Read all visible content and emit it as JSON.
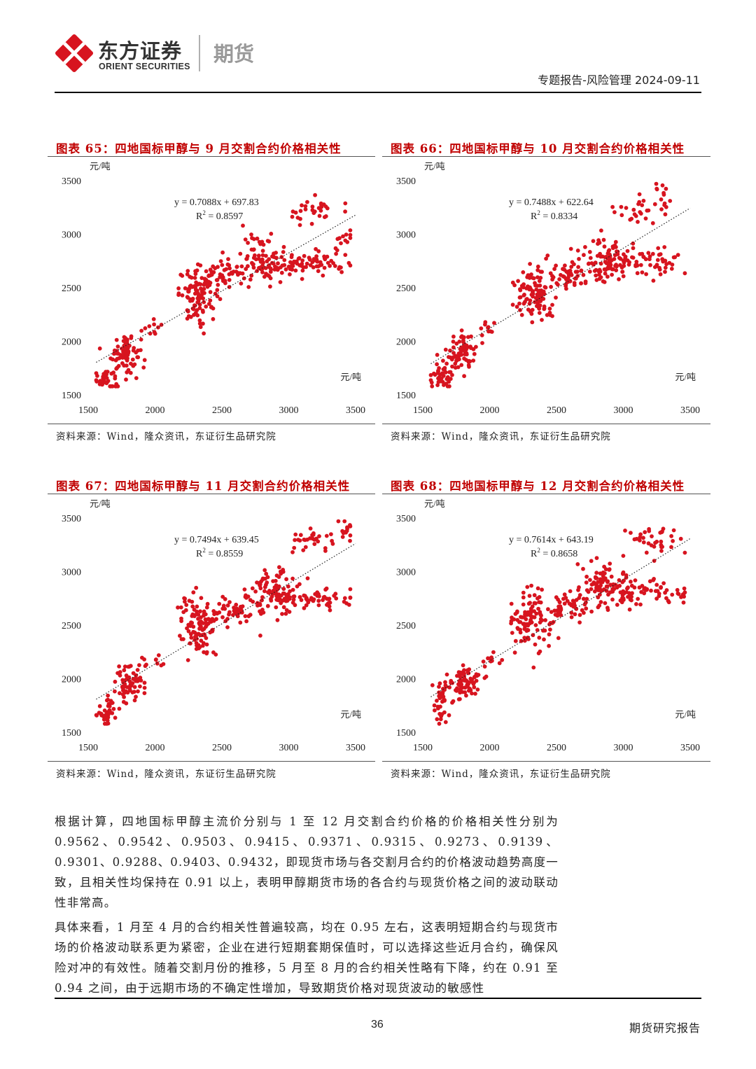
{
  "header": {
    "logo_cn": "东方证券",
    "logo_en": "ORIENT SECURITIES",
    "logo_suffix": "期货",
    "report_meta": "专题报告-风险管理 2024-09-11",
    "colors": {
      "logo_red": "#d7141f",
      "title_red": "#c00000"
    }
  },
  "charts": [
    {
      "title": "图表 65：四地国标甲醇与 9 月交割合约价格相关性",
      "source": "资料来源：Wind，隆众资讯，东证衍生品研究院",
      "y_unit": "元/吨",
      "x_unit": "元/吨",
      "equation": "y = 0.7088x + 697.83",
      "r2_label": "R",
      "r2_sup": "2",
      "r2_value": " = 0.8597"
    },
    {
      "title": "图表 66：四地国标甲醇与 10 月交割合约价格相关性",
      "source": "资料来源：Wind，隆众资讯，东证衍生品研究院",
      "y_unit": "元/吨",
      "x_unit": "元/吨",
      "equation": "y = 0.7488x + 622.64",
      "r2_label": "R",
      "r2_sup": "2",
      "r2_value": " = 0.8334"
    },
    {
      "title": "图表 67：四地国标甲醇与 11 月交割合约价格相关性",
      "source": "资料来源：Wind，隆众资讯，东证衍生品研究院",
      "y_unit": "元/吨",
      "x_unit": "元/吨",
      "equation": "y = 0.7494x + 639.45",
      "r2_label": "R",
      "r2_sup": "2",
      "r2_value": " = 0.8559"
    },
    {
      "title": "图表 68：四地国标甲醇与 12 月交割合约价格相关性",
      "source": "资料来源：Wind，隆众资讯，东证衍生品研究院",
      "y_unit": "元/吨",
      "x_unit": "元/吨",
      "equation": "y = 0.7614x + 643.19",
      "r2_label": "R",
      "r2_sup": "2",
      "r2_value": " = 0.8658"
    }
  ],
  "chart_data": [
    {
      "type": "scatter",
      "xlim": [
        1500,
        3500
      ],
      "ylim": [
        1500,
        3500
      ],
      "x_ticks": [
        "1500",
        "2000",
        "2500",
        "3000",
        "3500"
      ],
      "y_ticks": [
        "1500",
        "2000",
        "2500",
        "3000",
        "3500"
      ],
      "trendline": {
        "slope": 0.7088,
        "intercept": 697.83,
        "x_range": [
          1560,
          3500
        ]
      },
      "series_color": "#d7141f",
      "grid": false,
      "clusters": [
        {
          "cx": 1640,
          "cy": 1660,
          "sx": 45,
          "sy": 70,
          "n": 40
        },
        {
          "cx": 1780,
          "cy": 1900,
          "sx": 55,
          "sy": 90,
          "n": 70
        },
        {
          "cx": 1970,
          "cy": 2120,
          "sx": 45,
          "sy": 40,
          "n": 10
        },
        {
          "cx": 2330,
          "cy": 2440,
          "sx": 75,
          "sy": 120,
          "n": 110
        },
        {
          "cx": 2550,
          "cy": 2620,
          "sx": 80,
          "sy": 70,
          "n": 45
        },
        {
          "cx": 2830,
          "cy": 2780,
          "sx": 90,
          "sy": 110,
          "n": 80
        },
        {
          "cx": 3150,
          "cy": 2720,
          "sx": 160,
          "sy": 55,
          "n": 70
        },
        {
          "cx": 3180,
          "cy": 3220,
          "sx": 90,
          "sy": 60,
          "n": 30
        },
        {
          "cx": 3400,
          "cy": 2950,
          "sx": 50,
          "sy": 90,
          "n": 12
        }
      ]
    },
    {
      "type": "scatter",
      "xlim": [
        1500,
        3500
      ],
      "ylim": [
        1500,
        3500
      ],
      "x_ticks": [
        "1500",
        "2000",
        "2500",
        "3000",
        "3500"
      ],
      "y_ticks": [
        "1500",
        "2000",
        "2500",
        "3000",
        "3500"
      ],
      "trendline": {
        "slope": 0.7488,
        "intercept": 622.64,
        "x_range": [
          1560,
          3500
        ]
      },
      "series_color": "#d7141f",
      "grid": false,
      "clusters": [
        {
          "cx": 1650,
          "cy": 1680,
          "sx": 45,
          "sy": 70,
          "n": 40
        },
        {
          "cx": 1790,
          "cy": 1910,
          "sx": 55,
          "sy": 90,
          "n": 70
        },
        {
          "cx": 1980,
          "cy": 2120,
          "sx": 45,
          "sy": 40,
          "n": 10
        },
        {
          "cx": 2340,
          "cy": 2450,
          "sx": 75,
          "sy": 130,
          "n": 110
        },
        {
          "cx": 2580,
          "cy": 2600,
          "sx": 90,
          "sy": 70,
          "n": 45
        },
        {
          "cx": 2850,
          "cy": 2760,
          "sx": 90,
          "sy": 110,
          "n": 80
        },
        {
          "cx": 3150,
          "cy": 2740,
          "sx": 170,
          "sy": 55,
          "n": 70
        },
        {
          "cx": 3100,
          "cy": 3250,
          "sx": 90,
          "sy": 70,
          "n": 25
        },
        {
          "cx": 3290,
          "cy": 3350,
          "sx": 30,
          "sy": 90,
          "n": 12
        }
      ]
    },
    {
      "type": "scatter",
      "xlim": [
        1500,
        3500
      ],
      "ylim": [
        1500,
        3500
      ],
      "x_ticks": [
        "1500",
        "2000",
        "2500",
        "3000",
        "3500"
      ],
      "y_ticks": [
        "1500",
        "2000",
        "2500",
        "3000",
        "3500"
      ],
      "trendline": {
        "slope": 0.7494,
        "intercept": 639.45,
        "x_range": [
          1560,
          3500
        ]
      },
      "series_color": "#d7141f",
      "grid": false,
      "clusters": [
        {
          "cx": 1650,
          "cy": 1700,
          "sx": 45,
          "sy": 70,
          "n": 40
        },
        {
          "cx": 1800,
          "cy": 1940,
          "sx": 55,
          "sy": 100,
          "n": 70
        },
        {
          "cx": 2000,
          "cy": 2150,
          "sx": 50,
          "sy": 40,
          "n": 10
        },
        {
          "cx": 2320,
          "cy": 2480,
          "sx": 70,
          "sy": 140,
          "n": 110
        },
        {
          "cx": 2600,
          "cy": 2640,
          "sx": 90,
          "sy": 70,
          "n": 45
        },
        {
          "cx": 2880,
          "cy": 2800,
          "sx": 90,
          "sy": 120,
          "n": 80
        },
        {
          "cx": 3150,
          "cy": 2760,
          "sx": 170,
          "sy": 55,
          "n": 70
        },
        {
          "cx": 3150,
          "cy": 3280,
          "sx": 110,
          "sy": 60,
          "n": 30
        },
        {
          "cx": 3420,
          "cy": 3400,
          "sx": 40,
          "sy": 60,
          "n": 15
        }
      ]
    },
    {
      "type": "scatter",
      "xlim": [
        1500,
        3500
      ],
      "ylim": [
        1500,
        3500
      ],
      "x_ticks": [
        "1500",
        "2000",
        "2500",
        "3000",
        "3500"
      ],
      "y_ticks": [
        "1500",
        "2000",
        "2500",
        "3000",
        "3500"
      ],
      "trendline": {
        "slope": 0.7614,
        "intercept": 643.19,
        "x_range": [
          1560,
          3500
        ]
      },
      "series_color": "#d7141f",
      "grid": false,
      "clusters": [
        {
          "cx": 1630,
          "cy": 1780,
          "sx": 35,
          "sy": 110,
          "n": 40
        },
        {
          "cx": 1820,
          "cy": 1960,
          "sx": 60,
          "sy": 80,
          "n": 70
        },
        {
          "cx": 2020,
          "cy": 2180,
          "sx": 50,
          "sy": 40,
          "n": 10
        },
        {
          "cx": 2320,
          "cy": 2540,
          "sx": 80,
          "sy": 130,
          "n": 110
        },
        {
          "cx": 2620,
          "cy": 2700,
          "sx": 90,
          "sy": 80,
          "n": 45
        },
        {
          "cx": 2880,
          "cy": 2880,
          "sx": 90,
          "sy": 120,
          "n": 80
        },
        {
          "cx": 3150,
          "cy": 2800,
          "sx": 150,
          "sy": 60,
          "n": 60
        },
        {
          "cx": 3250,
          "cy": 3290,
          "sx": 130,
          "sy": 70,
          "n": 35
        },
        {
          "cx": 3420,
          "cy": 2770,
          "sx": 40,
          "sy": 30,
          "n": 8
        }
      ]
    }
  ],
  "body": {
    "paragraphs": [
      "根据计算，四地国标甲醇主流价分别与 1 至 12 月交割合约价格的价格相关性分别为 0.9562、0.9542、0.9503、0.9415、0.9371、0.9315、0.9273、0.9139、0.9301、0.9288、0.9403、0.9432，即现货市场与各交割月合约的价格波动趋势高度一致，且相关性均保持在 0.91 以上，表明甲醇期货市场的各合约与现货价格之间的波动联动性非常高。",
      "具体来看，1 月至 4 月的合约相关性普遍较高，均在 0.95 左右，这表明短期合约与现货市场的价格波动联系更为紧密，企业在进行短期套期保值时，可以选择这些近月合约，确保风险对冲的有效性。随着交割月份的推移，5 月至 8 月的合约相关性略有下降，约在 0.91 至 0.94 之间，由于远期市场的不确定性增加，导致期货价格对现货波动的敏感性"
    ]
  },
  "footer": {
    "page_number": "36",
    "right_text": "期货研究报告"
  }
}
